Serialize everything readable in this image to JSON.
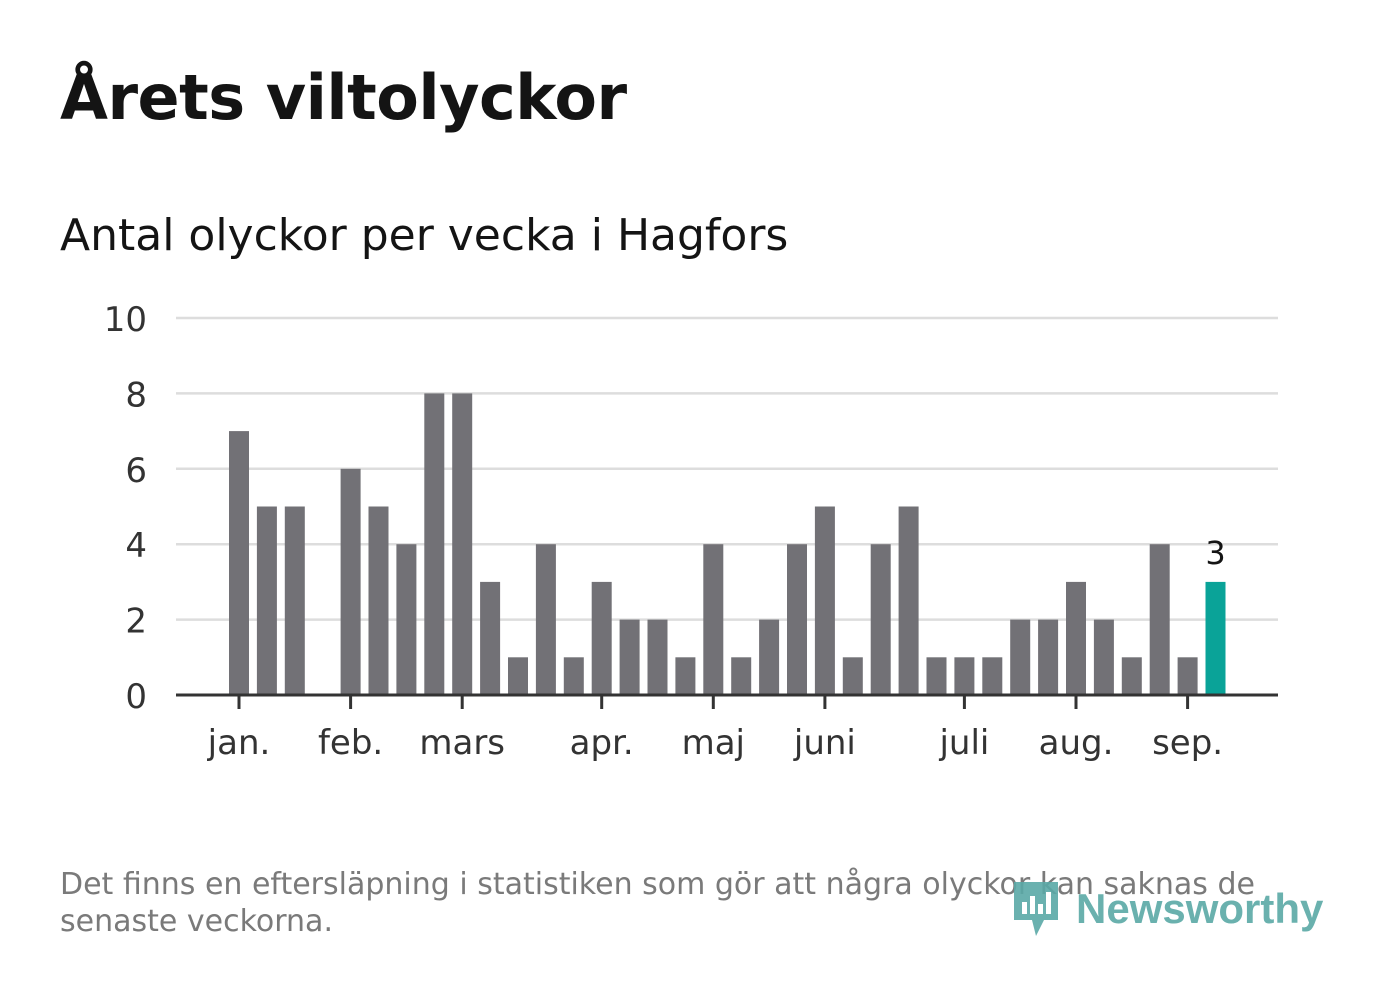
{
  "title": "Årets viltolyckor",
  "subtitle": "Antal olyckor per vecka i Hagfors",
  "footnote": "Det finns en eftersläpning i statistiken som gör att några olyckor kan saknas de senaste veckorna.",
  "brand": {
    "name": "Newsworthy",
    "icon": "newsworthy-logo-icon",
    "color": "#5aa9a6"
  },
  "chart_data": {
    "type": "bar",
    "title": "Antal olyckor per vecka i Hagfors",
    "xlabel": "",
    "ylabel": "",
    "ylim": [
      0,
      10
    ],
    "yticks": [
      0,
      2,
      4,
      6,
      8,
      10
    ],
    "grid": true,
    "colors": {
      "bar": "#727176",
      "highlight": "#0aa398",
      "grid": "#dddddd",
      "axis": "#333333",
      "tick_text": "#333333"
    },
    "values": [
      7,
      5,
      5,
      0,
      6,
      5,
      4,
      8,
      8,
      3,
      1,
      4,
      1,
      3,
      2,
      2,
      1,
      4,
      1,
      2,
      4,
      5,
      1,
      4,
      5,
      1,
      1,
      1,
      2,
      2,
      3,
      2,
      1,
      4,
      1,
      3
    ],
    "highlight_index": 35,
    "highlight_label": "3",
    "month_labels": [
      {
        "label": "jan.",
        "week_index": 0
      },
      {
        "label": "feb.",
        "week_index": 4
      },
      {
        "label": "mars",
        "week_index": 8
      },
      {
        "label": "apr.",
        "week_index": 13
      },
      {
        "label": "maj",
        "week_index": 17
      },
      {
        "label": "juni",
        "week_index": 21
      },
      {
        "label": "juli",
        "week_index": 26
      },
      {
        "label": "aug.",
        "week_index": 30
      },
      {
        "label": "sep.",
        "week_index": 34
      }
    ]
  }
}
